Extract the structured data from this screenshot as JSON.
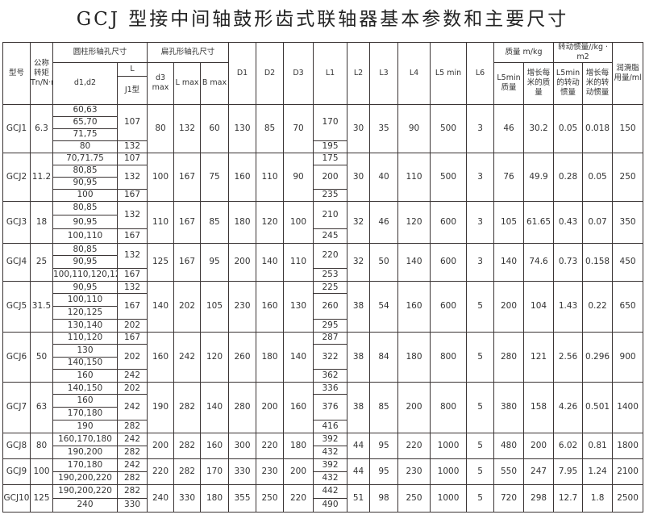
{
  "title": "GCJ  型接中间轴鼓形齿式联轴器基本参数和主要尺寸",
  "header": {
    "model": "型号",
    "torque": "公称转矩Tn/N·m",
    "cyl_bore": "圆柱形轴孔尺寸",
    "d1d2": "d1,d2",
    "L": "L",
    "J1": "J1型",
    "flat_bore": "扁孔形轴孔尺寸",
    "d3max": "d3 max",
    "Lmax": "L max",
    "Bmax": "B max",
    "D1": "D1",
    "D2": "D2",
    "D3": "D3",
    "L1": "L1",
    "L2": "L2",
    "L3": "L3",
    "L4": "L4",
    "L5min": "L5 min",
    "L6": "L6",
    "mass": "质量 m/kg",
    "mass_l5": "L5min质量",
    "mass_per_m": "增长每米的质量",
    "inertia": "转动惯量//kg · m2",
    "inertia_l5": "L5min的转动惯量",
    "inertia_per_m": "增长每米的转动惯量",
    "grease": "润滑脂用量/ml"
  },
  "rows": [
    {
      "model": "GCJ1",
      "torque": "6.3",
      "d": [
        "60,63",
        "65,70",
        "71,75",
        "80"
      ],
      "L": [
        [
          "107",
          3
        ],
        [
          "132",
          1
        ]
      ],
      "d3": "80",
      "Lmax": "132",
      "B": "60",
      "D1": "130",
      "D2": "85",
      "D3": "70",
      "L1": [
        [
          "170",
          3
        ],
        [
          "195",
          1
        ]
      ],
      "L2": "30",
      "L3": "35",
      "L4": "90",
      "L5": "500",
      "L6": "3",
      "m": "46",
      "mm": "30.2",
      "j": "0.05",
      "jm": "0.018",
      "g": "150"
    },
    {
      "model": "GCJ2",
      "torque": "11.2",
      "d": [
        "70,71.75",
        "80,85",
        "90,95",
        "100"
      ],
      "L": [
        [
          "107",
          1
        ],
        [
          "132",
          2
        ],
        [
          "167",
          1
        ]
      ],
      "d3": "100",
      "Lmax": "167",
      "B": "75",
      "D1": "160",
      "D2": "110",
      "D3": "90",
      "L1": [
        [
          "175",
          1
        ],
        [
          "200",
          2
        ],
        [
          "235",
          1
        ]
      ],
      "L2": "30",
      "L3": "40",
      "L4": "110",
      "L5": "500",
      "L6": "3",
      "m": "76",
      "mm": "49.9",
      "j": "0.28",
      "jm": "0.05",
      "g": "250"
    },
    {
      "model": "GCJ3",
      "torque": "18",
      "d": [
        "80,85",
        "90,95",
        "100,110"
      ],
      "L": [
        [
          "132",
          2
        ],
        [
          "167",
          1
        ]
      ],
      "d3": "110",
      "Lmax": "167",
      "B": "85",
      "D1": "180",
      "D2": "120",
      "D3": "100",
      "L1": [
        [
          "210",
          2
        ],
        [
          "245",
          1
        ]
      ],
      "L2": "32",
      "L3": "46",
      "L4": "120",
      "L5": "600",
      "L6": "3",
      "m": "105",
      "mm": "61.65",
      "j": "0.43",
      "jm": "0.07",
      "g": "350"
    },
    {
      "model": "GCJ4",
      "torque": "25",
      "d": [
        "80,85",
        "90,95",
        "100,110,120,125"
      ],
      "L": [
        [
          "132",
          2
        ],
        [
          "167",
          1
        ]
      ],
      "d3": "125",
      "Lmax": "167",
      "B": "95",
      "D1": "200",
      "D2": "140",
      "D3": "110",
      "L1": [
        [
          "220",
          2
        ],
        [
          "253",
          1
        ]
      ],
      "L2": "32",
      "L3": "50",
      "L4": "140",
      "L5": "600",
      "L6": "3",
      "m": "140",
      "mm": "74.6",
      "j": "0.73",
      "jm": "0.158",
      "g": "450"
    },
    {
      "model": "GCJ5",
      "torque": "31.5",
      "d": [
        "90,95",
        "100,110",
        "120,125",
        "130,140"
      ],
      "L": [
        [
          "132",
          1
        ],
        [
          "167",
          2
        ],
        [
          "202",
          1
        ]
      ],
      "d3": "140",
      "Lmax": "202",
      "B": "105",
      "D1": "230",
      "D2": "160",
      "D3": "130",
      "L1": [
        [
          "225",
          1
        ],
        [
          "260",
          2
        ],
        [
          "295",
          1
        ]
      ],
      "L2": "38",
      "L3": "54",
      "L4": "160",
      "L5": "600",
      "L6": "5",
      "m": "200",
      "mm": "104",
      "j": "1.43",
      "jm": "0.22",
      "g": "650"
    },
    {
      "model": "GCJ6",
      "torque": "50",
      "d": [
        "110,120",
        "130",
        "140,150",
        "160"
      ],
      "L": [
        [
          "167",
          1
        ],
        [
          "202",
          2
        ],
        [
          "242",
          1
        ]
      ],
      "d3": "160",
      "Lmax": "242",
      "B": "120",
      "D1": "260",
      "D2": "180",
      "D3": "140",
      "L1": [
        [
          "287",
          1
        ],
        [
          "322",
          2
        ],
        [
          "362",
          1
        ]
      ],
      "L2": "38",
      "L3": "84",
      "L4": "180",
      "L5": "800",
      "L6": "5",
      "m": "280",
      "mm": "121",
      "j": "2.56",
      "jm": "0.296",
      "g": "900"
    },
    {
      "model": "GCJ7",
      "torque": "63",
      "d": [
        "140,150",
        "160",
        "170,180",
        "190"
      ],
      "L": [
        [
          "202",
          1
        ],
        [
          "242",
          2
        ],
        [
          "282",
          1
        ]
      ],
      "d3": "190",
      "Lmax": "282",
      "B": "140",
      "D1": "280",
      "D2": "200",
      "D3": "160",
      "L1": [
        [
          "336",
          1
        ],
        [
          "376",
          2
        ],
        [
          "416",
          1
        ]
      ],
      "L2": "38",
      "L3": "85",
      "L4": "200",
      "L5": "800",
      "L6": "5",
      "m": "380",
      "mm": "158",
      "j": "4.26",
      "jm": "0.501",
      "g": "1400"
    },
    {
      "model": "GCJ8",
      "torque": "80",
      "d": [
        "160,170,180",
        "190,200"
      ],
      "L": [
        [
          "242",
          1
        ],
        [
          "282",
          1
        ]
      ],
      "d3": "200",
      "Lmax": "282",
      "B": "160",
      "D1": "300",
      "D2": "220",
      "D3": "180",
      "L1": [
        [
          "392",
          1
        ],
        [
          "432",
          1
        ]
      ],
      "L2": "44",
      "L3": "95",
      "L4": "220",
      "L5": "1000",
      "L6": "5",
      "m": "480",
      "mm": "200",
      "j": "6.02",
      "jm": "0.81",
      "g": "1800"
    },
    {
      "model": "GCJ9",
      "torque": "100",
      "d": [
        "170,180",
        "190,200,220"
      ],
      "L": [
        [
          "242",
          1
        ],
        [
          "282",
          1
        ]
      ],
      "d3": "220",
      "Lmax": "282",
      "B": "170",
      "D1": "330",
      "D2": "230",
      "D3": "200",
      "L1": [
        [
          "392",
          1
        ],
        [
          "432",
          1
        ]
      ],
      "L2": "44",
      "L3": "95",
      "L4": "230",
      "L5": "1000",
      "L6": "5",
      "m": "550",
      "mm": "247",
      "j": "7.95",
      "jm": "1.24",
      "g": "2100"
    },
    {
      "model": "GCJ10",
      "torque": "125",
      "d": [
        "190,200,220",
        "240"
      ],
      "L": [
        [
          "282",
          1
        ],
        [
          "330",
          1
        ]
      ],
      "d3": "240",
      "Lmax": "330",
      "B": "180",
      "D1": "355",
      "D2": "250",
      "D3": "220",
      "L1": [
        [
          "442",
          1
        ],
        [
          "490",
          1
        ]
      ],
      "L2": "51",
      "L3": "98",
      "L4": "250",
      "L5": "1000",
      "L6": "5",
      "m": "720",
      "mm": "298",
      "j": "12.7",
      "jm": "1.8",
      "g": "2500"
    }
  ]
}
